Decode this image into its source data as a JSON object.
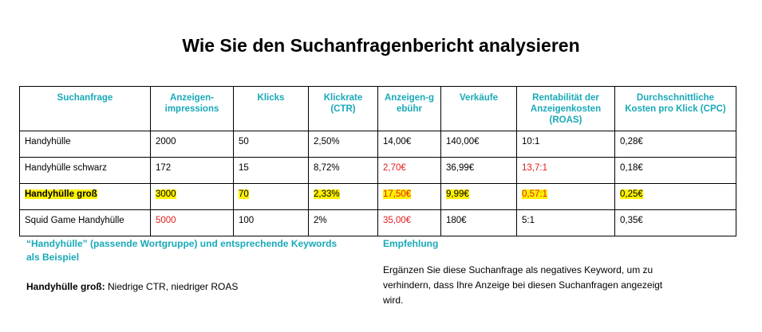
{
  "title": "Wie Sie den Suchanfragenbericht analysieren",
  "table": {
    "headers": [
      "Suchanfrage",
      "Anzeigen-\nimpressions",
      "Klicks",
      "Klickrate\n(CTR)",
      "Anzeigen-g\nebühr",
      "Verkäufe",
      "Rentabilität der\nAnzeigenkosten\n(ROAS)",
      "Durchschnittliche\nKosten pro Klick (CPC)"
    ],
    "rows": [
      {
        "cells": [
          "Handyhülle",
          "2000",
          "50",
          "2,50%",
          "14,00€",
          "140,00€",
          "10:1",
          "0,28€"
        ]
      },
      {
        "cells": [
          "Handyhülle schwarz",
          "172",
          "15",
          "8,72%",
          "2,70€",
          "36,99€",
          "13,7:1",
          "0,18€"
        ]
      },
      {
        "cells": [
          "Handyhülle groß",
          "3000",
          "70",
          "2,33%",
          "17,50€",
          "9,99€",
          "0,57:1",
          "0,25€"
        ]
      },
      {
        "cells": [
          "Squid Game Handyhülle",
          "5000",
          "100",
          "2%",
          "35,00€",
          "180€",
          "5:1",
          "0,35€"
        ]
      }
    ]
  },
  "example": {
    "heading": "“Handyhülle” (passende Wortgruppe) und entsprechende Keywords als Beispiel",
    "note_label": "Handyhülle groß:",
    "note_text": " Niedrige CTR, niedriger ROAS"
  },
  "recommendation": {
    "heading": "Empfehlung",
    "text": "Ergänzen Sie diese Suchanfrage als negatives Keyword, um zu verhindern, dass Ihre Anzeige bei diesen Suchanfragen angezeigt wird."
  },
  "colors": {
    "accent": "#18a9b8",
    "warning_text": "#e11d1d",
    "highlight": "#fff200"
  }
}
